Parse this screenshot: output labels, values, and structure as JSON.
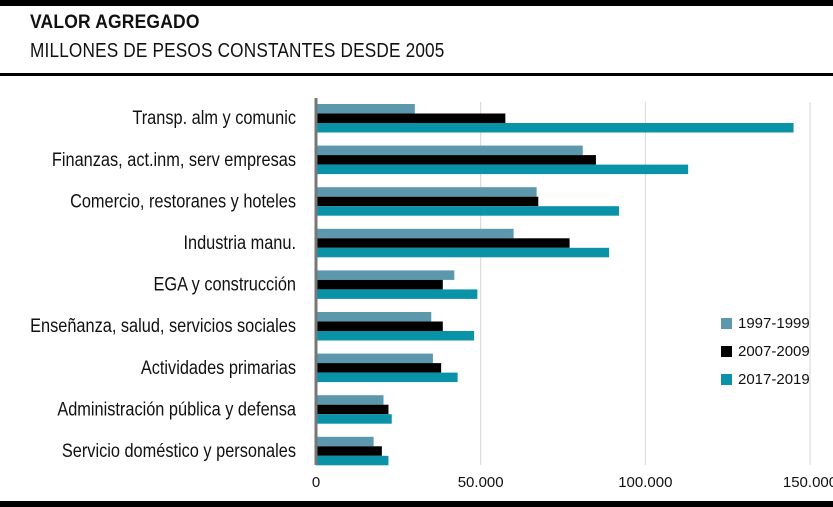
{
  "header": {
    "title": "VALOR AGREGADO",
    "subtitle": "MILLONES DE PESOS CONSTANTES DESDE 2005"
  },
  "chart_data": {
    "type": "bar",
    "orientation": "horizontal",
    "title": "VALOR AGREGADO",
    "subtitle": "MILLONES DE PESOS CONSTANTES DESDE 2005",
    "categories": [
      "Transp. alm y comunic",
      "Finanzas, act.inm, serv empresas",
      "Comercio, restoranes y hoteles",
      "Industria manu.",
      "EGA y construcción",
      "Enseñanza, salud, servicios sociales",
      "Actividades primarias",
      "Administración pública y defensa",
      "Servicio doméstico y personales"
    ],
    "series": [
      {
        "name": "1997-1999",
        "color": "#5b97ad",
        "values": [
          30000,
          81000,
          67000,
          60000,
          42000,
          35000,
          35500,
          20500,
          17500
        ]
      },
      {
        "name": "2007-2009",
        "color": "#000000",
        "values": [
          57500,
          85000,
          67500,
          77000,
          38500,
          38500,
          38000,
          22000,
          20000
        ]
      },
      {
        "name": "2017-2019",
        "color": "#0a93a8",
        "values": [
          145000,
          113000,
          92000,
          89000,
          49000,
          48000,
          43000,
          23000,
          22000
        ]
      }
    ],
    "xlim": [
      0,
      150000
    ],
    "xticks": [
      0,
      50000,
      100000,
      150000
    ],
    "xtick_labels": [
      "0",
      "50.000",
      "100.000",
      "150.000"
    ],
    "grid": "vertical",
    "legend_position": "right"
  }
}
